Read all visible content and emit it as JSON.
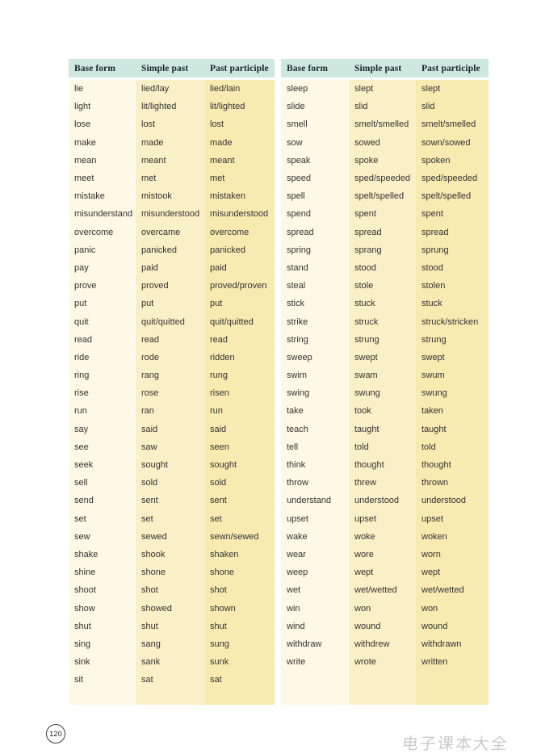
{
  "colors": {
    "header_bg": "#cfe8df",
    "col1_bg": "#fdf9e6",
    "col2_bg": "#faf0c8",
    "col3_bg": "#f7ebb2",
    "header_text": "#16252e",
    "body_text": "#343230",
    "watermark_color": "#b9b9b9"
  },
  "footer": {
    "page_number": "120",
    "watermark": "电子课本大全"
  },
  "tables": [
    {
      "headers": [
        "Base form",
        "Simple past",
        "Past participle"
      ],
      "rows": [
        [
          "lie",
          "lied/lay",
          "lied/lain"
        ],
        [
          "light",
          "lit/lighted",
          "lit/lighted"
        ],
        [
          "lose",
          "lost",
          "lost"
        ],
        [
          "make",
          "made",
          "made"
        ],
        [
          "mean",
          "meant",
          "meant"
        ],
        [
          "meet",
          "met",
          "met"
        ],
        [
          "mistake",
          "mistook",
          "mistaken"
        ],
        [
          "misunderstand",
          "misunderstood",
          "misunderstood"
        ],
        [
          "overcome",
          "overcame",
          "overcome"
        ],
        [
          "panic",
          "panicked",
          "panicked"
        ],
        [
          "pay",
          "paid",
          "paid"
        ],
        [
          "prove",
          "proved",
          "proved/proven"
        ],
        [
          "put",
          "put",
          "put"
        ],
        [
          "quit",
          "quit/quitted",
          "quit/quitted"
        ],
        [
          "read",
          "read",
          "read"
        ],
        [
          "ride",
          "rode",
          "ridden"
        ],
        [
          "ring",
          "rang",
          "rung"
        ],
        [
          "rise",
          "rose",
          "risen"
        ],
        [
          "run",
          "ran",
          "run"
        ],
        [
          "say",
          "said",
          "said"
        ],
        [
          "see",
          "saw",
          "seen"
        ],
        [
          "seek",
          "sought",
          "sought"
        ],
        [
          "sell",
          "sold",
          "sold"
        ],
        [
          "send",
          "sent",
          "sent"
        ],
        [
          "set",
          "set",
          "set"
        ],
        [
          "sew",
          "sewed",
          "sewn/sewed"
        ],
        [
          "shake",
          "shook",
          "shaken"
        ],
        [
          "shine",
          "shone",
          "shone"
        ],
        [
          "shoot",
          "shot",
          "shot"
        ],
        [
          "show",
          "showed",
          "shown"
        ],
        [
          "shut",
          "shut",
          "shut"
        ],
        [
          "sing",
          "sang",
          "sung"
        ],
        [
          "sink",
          "sank",
          "sunk"
        ],
        [
          "sit",
          "sat",
          "sat"
        ]
      ]
    },
    {
      "headers": [
        "Base form",
        "Simple past",
        "Past participle"
      ],
      "rows": [
        [
          "sleep",
          "slept",
          "slept"
        ],
        [
          "slide",
          "slid",
          "slid"
        ],
        [
          "smell",
          "smelt/smelled",
          "smelt/smelled"
        ],
        [
          "sow",
          "sowed",
          "sown/sowed"
        ],
        [
          "speak",
          "spoke",
          "spoken"
        ],
        [
          "speed",
          "sped/speeded",
          "sped/speeded"
        ],
        [
          "spell",
          "spelt/spelled",
          "spelt/spelled"
        ],
        [
          "spend",
          "spent",
          "spent"
        ],
        [
          "spread",
          "spread",
          "spread"
        ],
        [
          "spring",
          "sprang",
          "sprung"
        ],
        [
          "stand",
          "stood",
          "stood"
        ],
        [
          "steal",
          "stole",
          "stolen"
        ],
        [
          "stick",
          "stuck",
          "stuck"
        ],
        [
          "strike",
          "struck",
          "struck/stricken"
        ],
        [
          "string",
          "strung",
          "strung"
        ],
        [
          "sweep",
          "swept",
          "swept"
        ],
        [
          "swim",
          "swam",
          "swum"
        ],
        [
          "swing",
          "swung",
          "swung"
        ],
        [
          "take",
          "took",
          "taken"
        ],
        [
          "teach",
          "taught",
          "taught"
        ],
        [
          "tell",
          "told",
          "told"
        ],
        [
          "think",
          "thought",
          "thought"
        ],
        [
          "throw",
          "threw",
          "thrown"
        ],
        [
          "understand",
          "understood",
          "understood"
        ],
        [
          "upset",
          "upset",
          "upset"
        ],
        [
          "wake",
          "woke",
          "woken"
        ],
        [
          "wear",
          "wore",
          "worn"
        ],
        [
          "weep",
          "wept",
          "wept"
        ],
        [
          "wet",
          "wet/wetted",
          "wet/wetted"
        ],
        [
          "win",
          "won",
          "won"
        ],
        [
          "wind",
          "wound",
          "wound"
        ],
        [
          "withdraw",
          "withdrew",
          "withdrawn"
        ],
        [
          "write",
          "wrote",
          "written"
        ]
      ]
    }
  ]
}
